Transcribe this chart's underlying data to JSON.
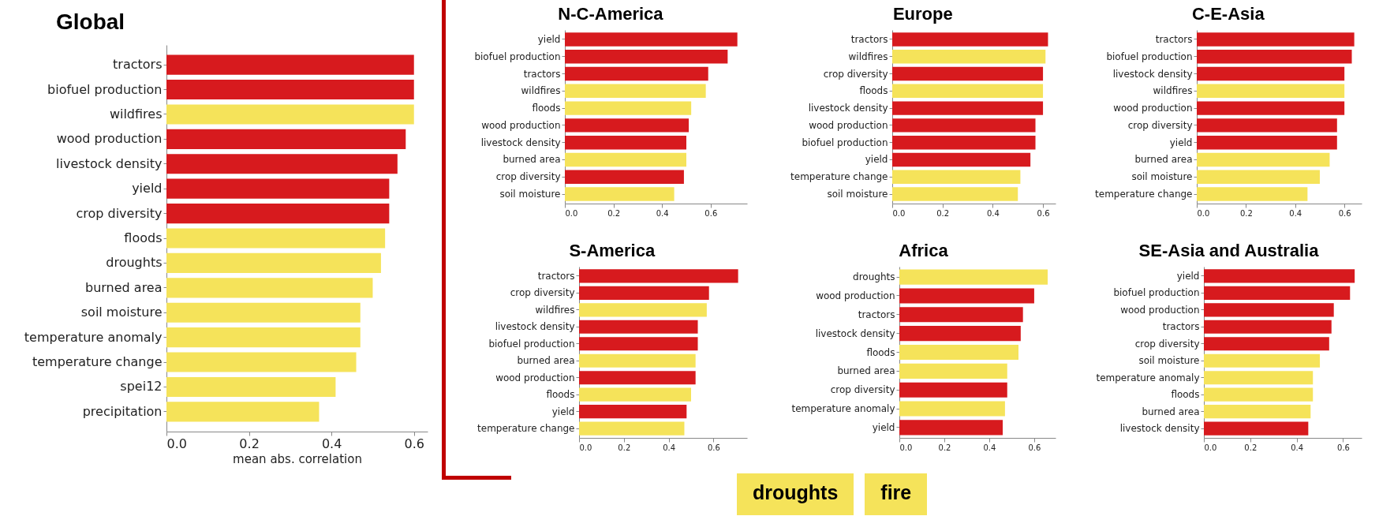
{
  "chart_data": [
    {
      "type": "bar",
      "orientation": "horizontal",
      "title": "Global",
      "xlabel": "mean abs. correlation",
      "categories": [
        "tractors",
        "biofuel production",
        "wildfires",
        "wood production",
        "livestock density",
        "yield",
        "crop diversity",
        "floods",
        "droughts",
        "burned area",
        "soil moisture",
        "temperature anomaly",
        "temperature change",
        "spei12",
        "precipitation"
      ],
      "values": [
        0.6,
        0.6,
        0.6,
        0.58,
        0.56,
        0.54,
        0.54,
        0.53,
        0.52,
        0.5,
        0.47,
        0.47,
        0.46,
        0.41,
        0.37
      ],
      "colors": [
        "#d71a1e",
        "#d71a1e",
        "#f5e35a",
        "#d71a1e",
        "#d71a1e",
        "#d71a1e",
        "#d71a1e",
        "#f5e35a",
        "#f5e35a",
        "#f5e35a",
        "#f5e35a",
        "#f5e35a",
        "#f5e35a",
        "#f5e35a",
        "#f5e35a"
      ],
      "xlim": [
        0,
        0.633
      ],
      "xticks": [
        {
          "value": 0,
          "label": "0.0"
        },
        {
          "value": 0.2,
          "label": "0.2"
        },
        {
          "value": 0.4,
          "label": "0.4"
        },
        {
          "value": 0.6,
          "label": "0.6"
        }
      ]
    },
    {
      "type": "bar",
      "orientation": "horizontal",
      "title": "N-C-America",
      "categories": [
        "yield",
        "biofuel production",
        "tractors",
        "wildfires",
        "floods",
        "wood production",
        "livestock density",
        "burned area",
        "crop diversity",
        "soil moisture"
      ],
      "values": [
        0.71,
        0.67,
        0.59,
        0.58,
        0.52,
        0.51,
        0.5,
        0.5,
        0.49,
        0.45
      ],
      "colors": [
        "#d71a1e",
        "#d71a1e",
        "#d71a1e",
        "#f5e35a",
        "#f5e35a",
        "#d71a1e",
        "#d71a1e",
        "#f5e35a",
        "#d71a1e",
        "#f5e35a"
      ],
      "xlim": [
        0,
        0.75
      ],
      "xticks": [
        {
          "value": 0,
          "label": "0.0"
        },
        {
          "value": 0.2,
          "label": "0.2"
        },
        {
          "value": 0.4,
          "label": "0.4"
        },
        {
          "value": 0.6,
          "label": "0.6"
        }
      ]
    },
    {
      "type": "bar",
      "orientation": "horizontal",
      "title": "Europe",
      "categories": [
        "tractors",
        "wildfires",
        "crop diversity",
        "floods",
        "livestock density",
        "wood production",
        "biofuel production",
        "yield",
        "temperature change",
        "soil moisture"
      ],
      "values": [
        0.62,
        0.61,
        0.6,
        0.6,
        0.6,
        0.57,
        0.57,
        0.55,
        0.51,
        0.5
      ],
      "colors": [
        "#d71a1e",
        "#f5e35a",
        "#d71a1e",
        "#f5e35a",
        "#d71a1e",
        "#d71a1e",
        "#d71a1e",
        "#d71a1e",
        "#f5e35a",
        "#f5e35a"
      ],
      "xlim": [
        0,
        0.65
      ],
      "xticks": [
        {
          "value": 0,
          "label": "0.0"
        },
        {
          "value": 0.2,
          "label": "0.2"
        },
        {
          "value": 0.4,
          "label": "0.4"
        },
        {
          "value": 0.6,
          "label": "0.6"
        }
      ]
    },
    {
      "type": "bar",
      "orientation": "horizontal",
      "title": "C-E-Asia",
      "categories": [
        "tractors",
        "biofuel production",
        "livestock density",
        "wildfires",
        "wood production",
        "crop diversity",
        "yield",
        "burned area",
        "soil moisture",
        "temperature change"
      ],
      "values": [
        0.64,
        0.63,
        0.6,
        0.6,
        0.6,
        0.57,
        0.57,
        0.54,
        0.5,
        0.45
      ],
      "colors": [
        "#d71a1e",
        "#d71a1e",
        "#d71a1e",
        "#f5e35a",
        "#d71a1e",
        "#d71a1e",
        "#d71a1e",
        "#f5e35a",
        "#f5e35a",
        "#f5e35a"
      ],
      "xlim": [
        0,
        0.67
      ],
      "xticks": [
        {
          "value": 0,
          "label": "0.0"
        },
        {
          "value": 0.2,
          "label": "0.2"
        },
        {
          "value": 0.4,
          "label": "0.4"
        },
        {
          "value": 0.6,
          "label": "0.6"
        }
      ]
    },
    {
      "type": "bar",
      "orientation": "horizontal",
      "title": "S-America",
      "categories": [
        "tractors",
        "crop diversity",
        "wildfires",
        "livestock density",
        "biofuel production",
        "burned area",
        "wood production",
        "floods",
        "yield",
        "temperature change"
      ],
      "values": [
        0.71,
        0.58,
        0.57,
        0.53,
        0.53,
        0.52,
        0.52,
        0.5,
        0.48,
        0.47
      ],
      "colors": [
        "#d71a1e",
        "#d71a1e",
        "#f5e35a",
        "#d71a1e",
        "#d71a1e",
        "#f5e35a",
        "#d71a1e",
        "#f5e35a",
        "#d71a1e",
        "#f5e35a"
      ],
      "xlim": [
        0,
        0.75
      ],
      "xticks": [
        {
          "value": 0,
          "label": "0.0"
        },
        {
          "value": 0.2,
          "label": "0.2"
        },
        {
          "value": 0.4,
          "label": "0.4"
        },
        {
          "value": 0.6,
          "label": "0.6"
        }
      ]
    },
    {
      "type": "bar",
      "orientation": "horizontal",
      "title": "Africa",
      "categories": [
        "droughts",
        "wood production",
        "tractors",
        "livestock density",
        "floods",
        "burned area",
        "crop diversity",
        "temperature anomaly",
        "yield"
      ],
      "values": [
        0.66,
        0.6,
        0.55,
        0.54,
        0.53,
        0.48,
        0.48,
        0.47,
        0.46
      ],
      "colors": [
        "#f5e35a",
        "#d71a1e",
        "#d71a1e",
        "#d71a1e",
        "#f5e35a",
        "#f5e35a",
        "#d71a1e",
        "#f5e35a",
        "#d71a1e"
      ],
      "xlim": [
        0,
        0.695
      ],
      "xticks": [
        {
          "value": 0,
          "label": "0.0"
        },
        {
          "value": 0.2,
          "label": "0.2"
        },
        {
          "value": 0.4,
          "label": "0.4"
        },
        {
          "value": 0.6,
          "label": "0.6"
        }
      ]
    },
    {
      "type": "bar",
      "orientation": "horizontal",
      "title": "SE-Asia and Australia",
      "categories": [
        "yield",
        "biofuel production",
        "wood production",
        "tractors",
        "crop diversity",
        "soil moisture",
        "temperature anomaly",
        "floods",
        "burned area",
        "livestock density"
      ],
      "values": [
        0.65,
        0.63,
        0.56,
        0.55,
        0.54,
        0.5,
        0.47,
        0.47,
        0.46,
        0.45
      ],
      "colors": [
        "#d71a1e",
        "#d71a1e",
        "#d71a1e",
        "#d71a1e",
        "#d71a1e",
        "#f5e35a",
        "#f5e35a",
        "#f5e35a",
        "#f5e35a",
        "#d71a1e"
      ],
      "xlim": [
        0,
        0.68
      ],
      "xticks": [
        {
          "value": 0,
          "label": "0.0"
        },
        {
          "value": 0.2,
          "label": "0.2"
        },
        {
          "value": 0.4,
          "label": "0.4"
        },
        {
          "value": 0.6,
          "label": "0.6"
        }
      ]
    },
    {
      "type": "other",
      "annotations": [
        "droughts",
        "fire"
      ]
    }
  ]
}
